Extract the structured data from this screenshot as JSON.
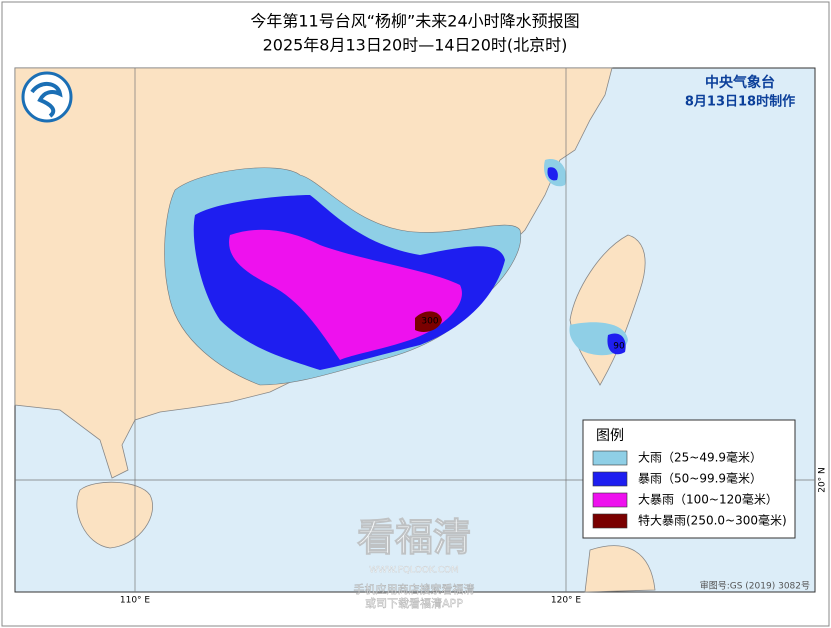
{
  "header": {
    "title": "今年第11号台风“杨柳”未来24小时降水预报图",
    "subtitle": "2025年8月13日20时—14日20时(北京时)"
  },
  "agency": {
    "name": "中央气象台",
    "issued": "8月13日18时制作"
  },
  "legend": {
    "title": "图例",
    "items": [
      {
        "label": "大雨（25~49.9毫米）",
        "color": "#8fcfe6"
      },
      {
        "label": "暴雨（50~99.9毫米）",
        "color": "#1e1ef0"
      },
      {
        "label": "大暴雨（100~120毫米）",
        "color": "#ee11ee"
      },
      {
        "label": "特大暴雨(250.0~300毫米)",
        "color": "#7a0000"
      }
    ]
  },
  "map": {
    "labels": {
      "max_mainland": "300",
      "max_taiwan": "90"
    },
    "graticule": {
      "lon_110": "110° E",
      "lon_120": "120° E",
      "lat_20": "20° N"
    },
    "approval": "审图号:GS (2019) 3082号"
  },
  "watermark": {
    "brand": "看福清",
    "url": "WWW.FQLOOK.COM",
    "line1": "手机应用商店搜索看福清",
    "line2": "或司下载看福清APP"
  }
}
